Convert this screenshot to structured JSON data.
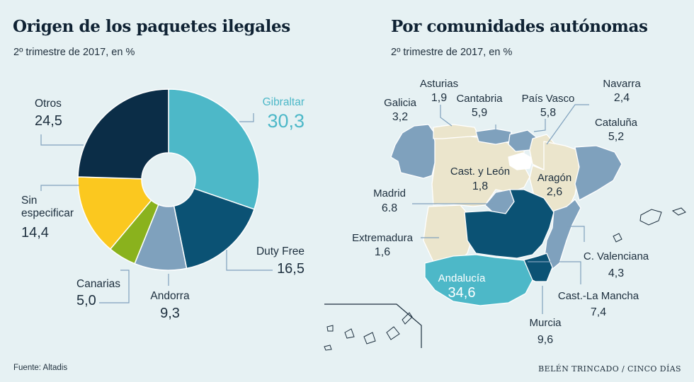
{
  "left": {
    "title": "Origen de los paquetes ilegales",
    "subtitle": "2º trimestre de 2017, en %"
  },
  "right": {
    "title": "Por comunidades autónomas",
    "subtitle": "2º trimestre de 2017, en %"
  },
  "footer": {
    "source": "Fuente: Altadis",
    "credit": "BELÉN TRINCADO / CINCO DÍAS"
  },
  "chart_data": [
    {
      "type": "pie",
      "donut": true,
      "title": "Origen de los paquetes ilegales",
      "subtitle": "2º trimestre de 2017, en %",
      "unit": "%",
      "categories": [
        "Gibraltar",
        "Duty Free",
        "Andorra",
        "Canarias",
        "Sin especificar",
        "Otros"
      ],
      "values": [
        30.3,
        16.5,
        9.3,
        5.0,
        14.4,
        24.5
      ],
      "display_values": [
        "30,3",
        "16,5",
        "9,3",
        "5,0",
        "14,4",
        "24,5"
      ],
      "colors": [
        "#4db8c8",
        "#0b5274",
        "#7fa1bd",
        "#8ab21d",
        "#fbc81f",
        "#0b2d47"
      ]
    },
    {
      "type": "choropleth",
      "title": "Por comunidades autónomas",
      "subtitle": "2º trimestre de 2017, en %",
      "unit": "%",
      "regions": [
        {
          "name": "Asturias",
          "value": "1,9",
          "color": "#ebe5cc"
        },
        {
          "name": "Galicia",
          "value": "3,2",
          "color": "#7fa1bd"
        },
        {
          "name": "Cantabria",
          "value": "5,9",
          "color": "#7fa1bd"
        },
        {
          "name": "País Vasco",
          "value": "5,8",
          "color": "#7fa1bd"
        },
        {
          "name": "Navarra",
          "value": "2,4",
          "color": "#ebe5cc"
        },
        {
          "name": "Cataluña",
          "value": "5,2",
          "color": "#7fa1bd"
        },
        {
          "name": "Cast. y León",
          "value": "1,8",
          "color": "#ebe5cc"
        },
        {
          "name": "Aragón",
          "value": "2,6",
          "color": "#ebe5cc"
        },
        {
          "name": "Madrid",
          "value": "6.8",
          "color": "#7fa1bd"
        },
        {
          "name": "Extremadura",
          "value": "1,6",
          "color": "#ebe5cc"
        },
        {
          "name": "C. Valenciana",
          "value": "4,3",
          "color": "#7fa1bd"
        },
        {
          "name": "Andalucía",
          "value": "34,6",
          "color": "#4db8c8"
        },
        {
          "name": "Cast.-La Mancha",
          "value": "7,4",
          "color": "#0b5274"
        },
        {
          "name": "Murcia",
          "value": "9,6",
          "color": "#0b5274"
        }
      ]
    }
  ]
}
